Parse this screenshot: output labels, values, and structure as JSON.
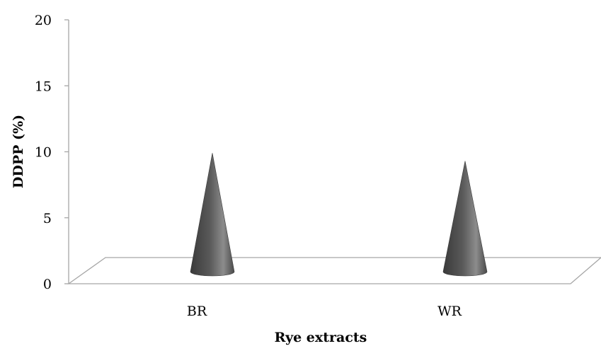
{
  "chart_data": {
    "type": "bar",
    "style": "3d-cone",
    "categories": [
      "BR",
      "WR"
    ],
    "values": [
      9.9,
      9.3
    ],
    "xlabel": "Rye extracts",
    "ylabel": "DDPP (%)",
    "ylim": [
      0,
      20
    ],
    "yticks": [
      "0",
      "5",
      "10",
      "15",
      "20"
    ],
    "grid": false,
    "legend": "none",
    "colors": {
      "cone_dark": "#3f3f3f",
      "cone_mid": "#8c8c8c",
      "axis": "#a6a6a6"
    }
  }
}
